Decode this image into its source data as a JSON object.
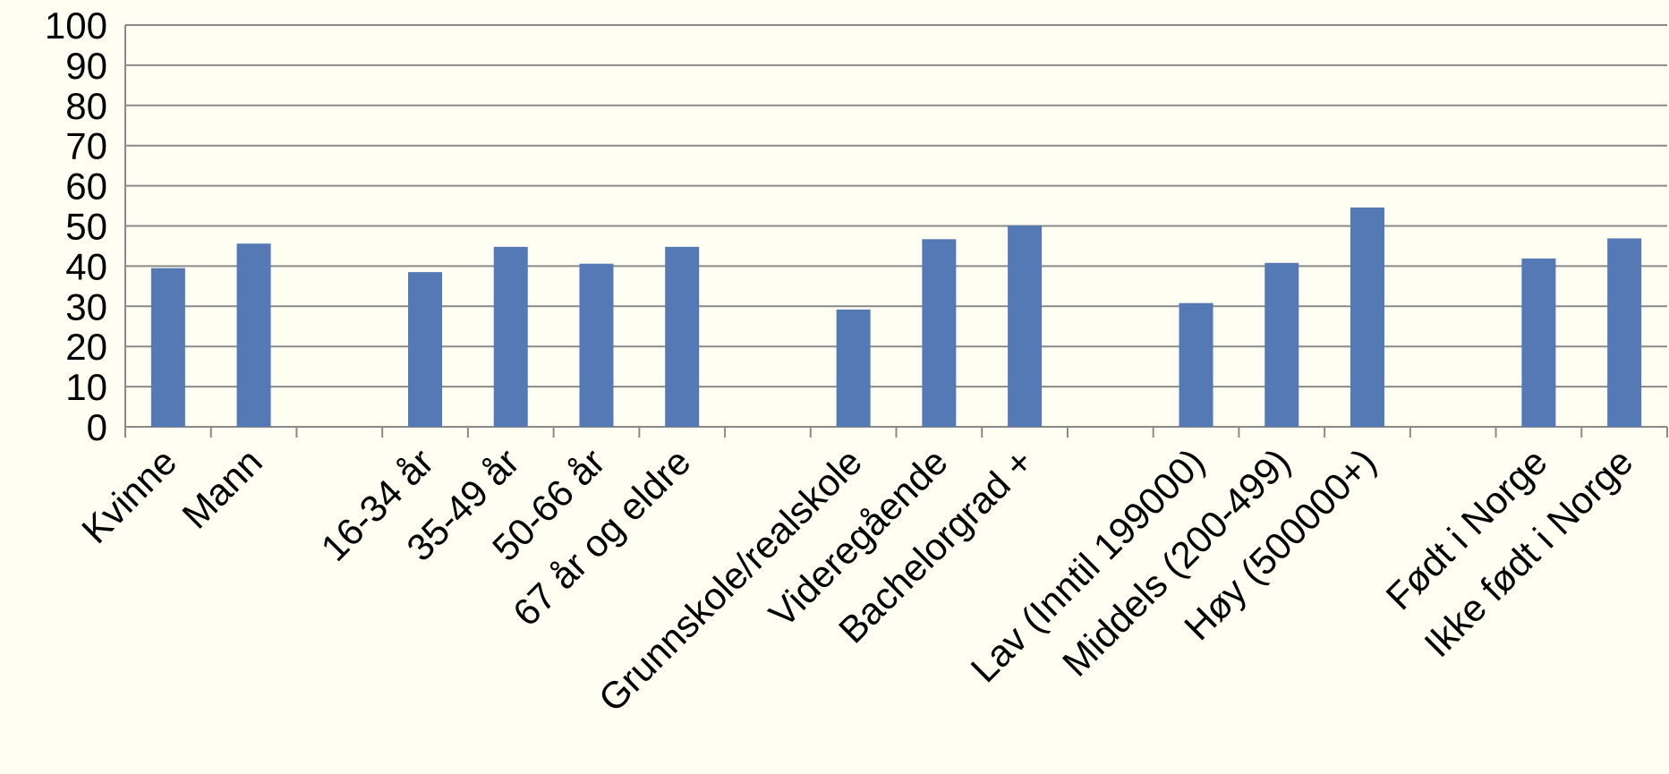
{
  "chart_data": {
    "type": "bar",
    "categories": [
      "Kvinne",
      "Mann",
      null,
      "16-34 år",
      "35-49 år",
      "50-66 år",
      "67 år og eldre",
      null,
      "Grunnskole/realskole",
      "Videregående",
      "Bachelorgrad +",
      null,
      "Lav (Inntil 199000)",
      "Middels (200-499)",
      "Høy (500000+)",
      null,
      "Født i Norge",
      "Ikke født i Norge"
    ],
    "values": [
      39.5,
      45.6,
      null,
      38.5,
      44.8,
      40.6,
      44.8,
      null,
      29.2,
      46.7,
      50.1,
      null,
      30.8,
      40.8,
      54.6,
      null,
      41.9,
      46.9
    ],
    "color": "#5479b5",
    "ylim": [
      0,
      100
    ],
    "yticks": [
      0,
      10,
      20,
      30,
      40,
      50,
      60,
      70,
      80,
      90,
      100
    ],
    "grid": true
  }
}
